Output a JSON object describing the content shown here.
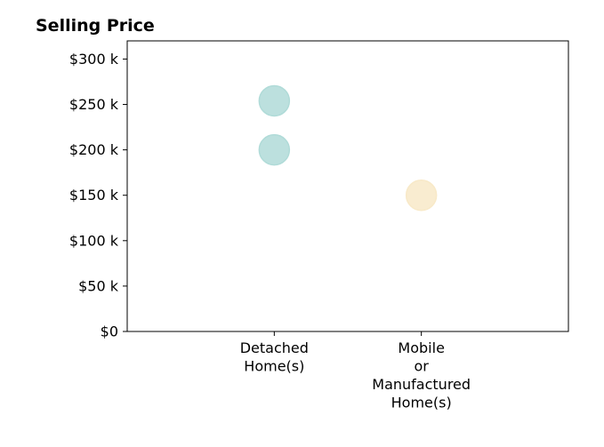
{
  "chart_data": {
    "type": "scatter",
    "title": "Selling Price",
    "xlabel": "",
    "ylabel": "",
    "categories": [
      "Detached\nHome(s)",
      "Mobile\nor\nManufactured\nHome(s)"
    ],
    "xlim": [
      -1,
      2
    ],
    "ylim": [
      0,
      320000
    ],
    "yticks": [
      0,
      50000,
      100000,
      150000,
      200000,
      250000,
      300000
    ],
    "ytick_labels": [
      "$0",
      "$50 k",
      "$100 k",
      "$150 k",
      "$200 k",
      "$250 k",
      "$300 k"
    ],
    "grid": false,
    "points": [
      {
        "category": "Detached\nHome(s)",
        "value": 200000,
        "color": "#b0dbd8"
      },
      {
        "category": "Detached\nHome(s)",
        "value": 254000,
        "color": "#b0dbd8"
      },
      {
        "category": "Mobile\nor\nManufactured\nHome(s)",
        "value": 150000,
        "color": "#f8e9c8"
      }
    ],
    "colors": {
      "detached": "#b0dbd8",
      "mobile": "#f8e9c8"
    }
  }
}
